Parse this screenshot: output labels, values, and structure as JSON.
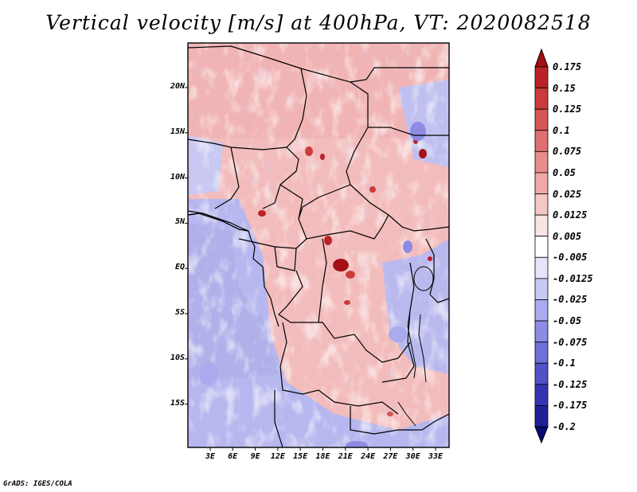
{
  "title": "Vertical velocity [m/s] at 400hPa, VT: 2020082518",
  "variable": "Vertical velocity",
  "units": "m/s",
  "level": "400hPa",
  "valid_time": "2020082518",
  "lat_labels": [
    "20N",
    "15N",
    "10N",
    "5N",
    "EQ",
    "5S",
    "10S",
    "15S"
  ],
  "lon_labels": [
    "3E",
    "6E",
    "9E",
    "12E",
    "15E",
    "18E",
    "21E",
    "24E",
    "27E",
    "30E",
    "33E"
  ],
  "colorbar": {
    "labels": [
      "0.175",
      "0.15",
      "0.125",
      "0.1",
      "0.075",
      "0.05",
      "0.025",
      "0.0125",
      "0.005",
      "-0.005",
      "-0.0125",
      "-0.025",
      "-0.05",
      "-0.075",
      "-0.1",
      "-0.125",
      "-0.175",
      "-0.2"
    ],
    "colors": [
      "#a50f15",
      "#bb2227",
      "#cb3b3b",
      "#d65555",
      "#e07070",
      "#e88c8c",
      "#efa8a8",
      "#f5c6c6",
      "#fae3e3",
      "#ffffff",
      "#e4e4fb",
      "#c8c8f4",
      "#aaaaee",
      "#8c8ce4",
      "#6f6fd8",
      "#5151c8",
      "#3535b4",
      "#1f1f98",
      "#0a0a78"
    ]
  },
  "credit": "GrADS: IGES/COLA"
}
